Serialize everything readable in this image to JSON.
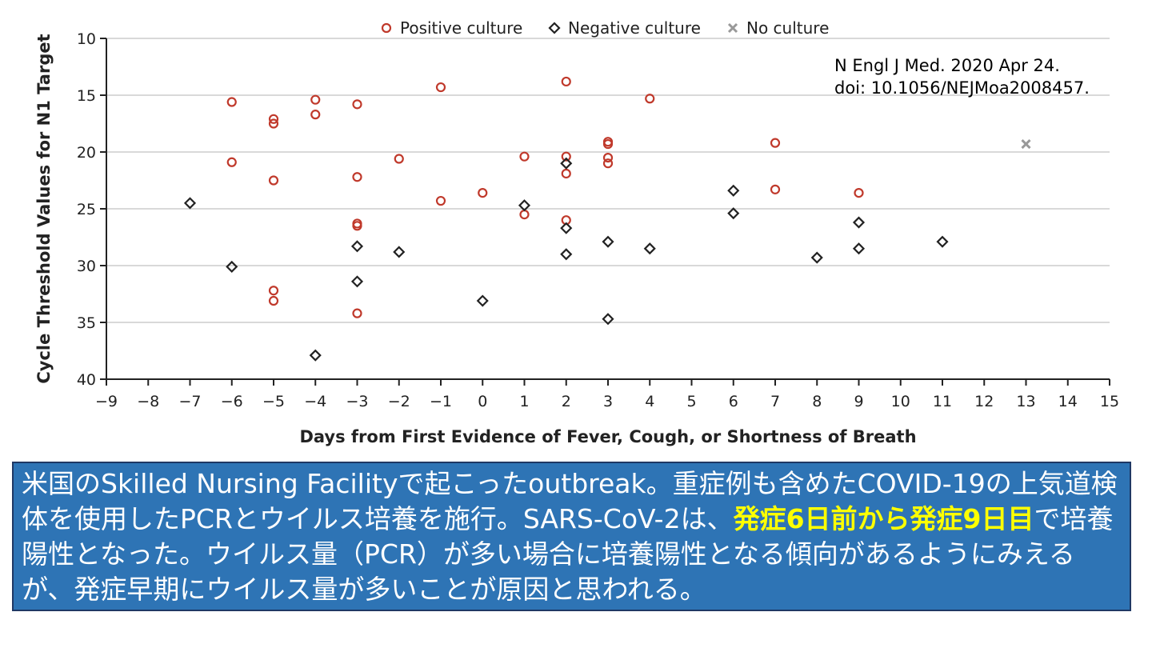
{
  "chart_data": {
    "type": "scatter",
    "xlabel": "Days from First Evidence of Fever, Cough, or Shortness of Breath",
    "ylabel": "Cycle Threshold Values for N1 Target",
    "xlim": [
      -9,
      15
    ],
    "ylim": [
      40,
      10
    ],
    "y_inverted": true,
    "xticks": [
      -9,
      -8,
      -7,
      -6,
      -5,
      -4,
      -3,
      -2,
      -1,
      0,
      1,
      2,
      3,
      4,
      5,
      6,
      7,
      8,
      9,
      10,
      11,
      12,
      13,
      14,
      15
    ],
    "yticks": [
      10,
      15,
      20,
      25,
      30,
      35,
      40
    ],
    "grid": "horizontal",
    "legend_position": "top",
    "series": [
      {
        "name": "Positive culture",
        "marker": "circle",
        "color": "#c0392b",
        "points": [
          [
            -6,
            15.6
          ],
          [
            -6,
            20.9
          ],
          [
            -5,
            17.1
          ],
          [
            -5,
            17.5
          ],
          [
            -5,
            22.5
          ],
          [
            -5,
            32.2
          ],
          [
            -5,
            33.1
          ],
          [
            -4,
            15.4
          ],
          [
            -4,
            16.7
          ],
          [
            -3,
            15.8
          ],
          [
            -3,
            22.2
          ],
          [
            -3,
            26.3
          ],
          [
            -3,
            26.5
          ],
          [
            -3,
            34.2
          ],
          [
            -2,
            20.6
          ],
          [
            -1,
            14.3
          ],
          [
            -1,
            24.3
          ],
          [
            0,
            23.6
          ],
          [
            1,
            20.4
          ],
          [
            1,
            25.5
          ],
          [
            2,
            13.8
          ],
          [
            2,
            20.4
          ],
          [
            2,
            21.9
          ],
          [
            2,
            26.0
          ],
          [
            3,
            19.1
          ],
          [
            3,
            19.3
          ],
          [
            3,
            20.5
          ],
          [
            3,
            21.0
          ],
          [
            4,
            15.3
          ],
          [
            7,
            19.2
          ],
          [
            7,
            23.3
          ],
          [
            9,
            23.6
          ]
        ]
      },
      {
        "name": "Negative culture",
        "marker": "diamond",
        "color": "#222222",
        "points": [
          [
            -7,
            24.5
          ],
          [
            -6,
            30.1
          ],
          [
            -4,
            37.9
          ],
          [
            -3,
            28.3
          ],
          [
            -3,
            31.4
          ],
          [
            -2,
            28.8
          ],
          [
            0,
            33.1
          ],
          [
            1,
            24.7
          ],
          [
            2,
            21.0
          ],
          [
            2,
            26.7
          ],
          [
            2,
            29.0
          ],
          [
            3,
            27.9
          ],
          [
            3,
            34.7
          ],
          [
            4,
            28.5
          ],
          [
            6,
            23.4
          ],
          [
            6,
            25.4
          ],
          [
            8,
            29.3
          ],
          [
            9,
            26.2
          ],
          [
            9,
            28.5
          ],
          [
            11,
            27.9
          ]
        ]
      },
      {
        "name": "No culture",
        "marker": "x",
        "color": "#999999",
        "points": [
          [
            13,
            19.3
          ]
        ]
      }
    ]
  },
  "citation": {
    "line1": "N Engl J Med. 2020 Apr 24.",
    "line2": "doi: 10.1056/NEJMoa2008457."
  },
  "caption": {
    "part1": "米国のSkilled Nursing Facilityで起こったoutbreak。重症例も含めたCOVID-19の上気道検体を使用したPCRとウイルス培養を施行。SARS-CoV-2は、",
    "highlight": "発症6日前から発症9日目",
    "part2": "で培養陽性となった。ウイルス量（PCR）が多い場合に培養陽性となる傾向があるようにみえるが、発症早期にウイルス量が多いことが原因と思われる。"
  }
}
